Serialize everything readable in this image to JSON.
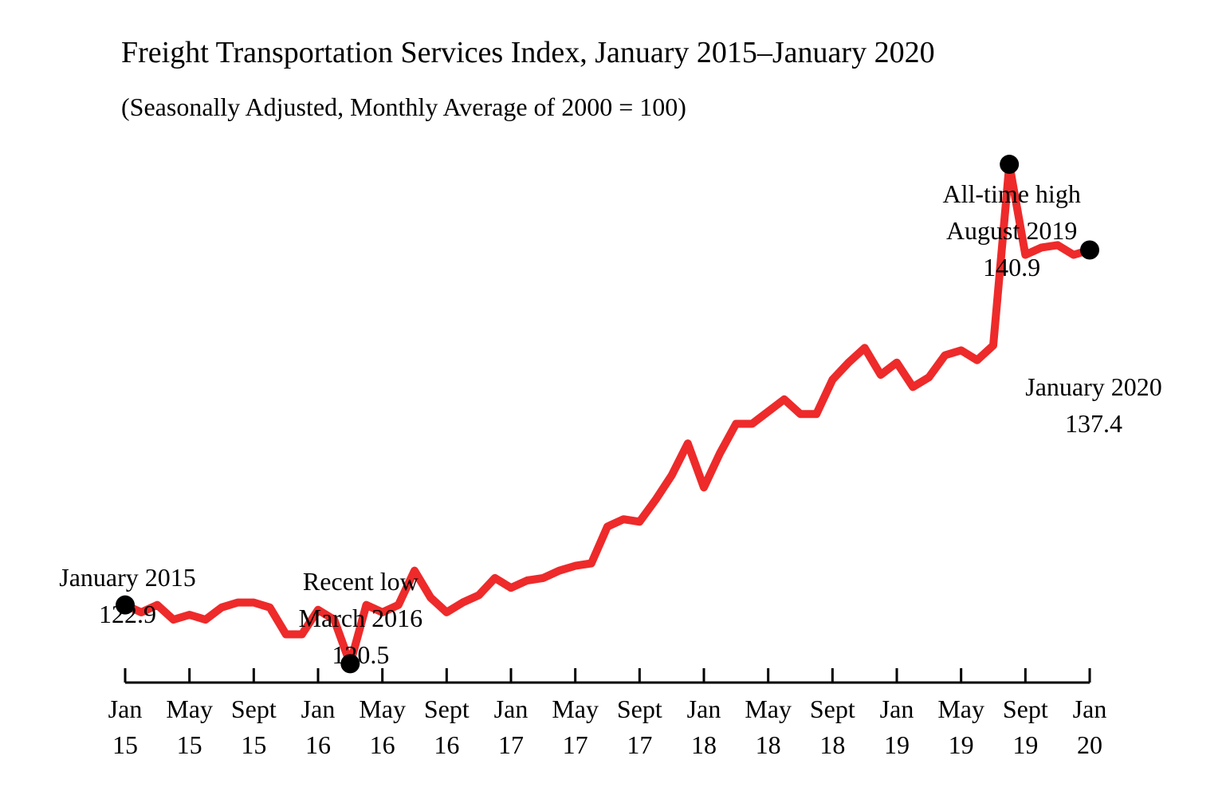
{
  "chart_data": {
    "type": "line",
    "title": "Freight Transportation Services Index, January 2015–January 2020",
    "subtitle": "(Seasonally Adjusted, Monthly Average of 2000 = 100)",
    "xlabel": "",
    "ylabel": "",
    "grid": false,
    "line_color": "#ee2a2a",
    "marker_color": "#000000",
    "x_range": [
      "2015-01",
      "2020-01"
    ],
    "x_ticks": [
      {
        "month": "2015-01",
        "line1": "Jan",
        "line2": "15"
      },
      {
        "month": "2015-05",
        "line1": "May",
        "line2": "15"
      },
      {
        "month": "2015-09",
        "line1": "Sept",
        "line2": "15"
      },
      {
        "month": "2016-01",
        "line1": "Jan",
        "line2": "16"
      },
      {
        "month": "2016-05",
        "line1": "May",
        "line2": "16"
      },
      {
        "month": "2016-09",
        "line1": "Sept",
        "line2": "16"
      },
      {
        "month": "2017-01",
        "line1": "Jan",
        "line2": "17"
      },
      {
        "month": "2017-05",
        "line1": "May",
        "line2": "17"
      },
      {
        "month": "2017-09",
        "line1": "Sept",
        "line2": "17"
      },
      {
        "month": "2018-01",
        "line1": "Jan",
        "line2": "18"
      },
      {
        "month": "2018-05",
        "line1": "May",
        "line2": "18"
      },
      {
        "month": "2018-09",
        "line1": "Sept",
        "line2": "18"
      },
      {
        "month": "2019-01",
        "line1": "Jan",
        "line2": "19"
      },
      {
        "month": "2019-05",
        "line1": "May",
        "line2": "19"
      },
      {
        "month": "2019-09",
        "line1": "Sept",
        "line2": "19"
      },
      {
        "month": "2020-01",
        "line1": "Jan",
        "line2": "20"
      }
    ],
    "series": [
      {
        "x": [
          "2015-01",
          "2015-02",
          "2015-03",
          "2015-04",
          "2015-05",
          "2015-06",
          "2015-07",
          "2015-08",
          "2015-09",
          "2015-10",
          "2015-11",
          "2015-12",
          "2016-01",
          "2016-02",
          "2016-03",
          "2016-04",
          "2016-05",
          "2016-06",
          "2016-07",
          "2016-08",
          "2016-09",
          "2016-10",
          "2016-11",
          "2016-12",
          "2017-01",
          "2017-02",
          "2017-03",
          "2017-04",
          "2017-05",
          "2017-06",
          "2017-07",
          "2017-08",
          "2017-09",
          "2017-10",
          "2017-11",
          "2017-12",
          "2018-01",
          "2018-02",
          "2018-03",
          "2018-04",
          "2018-05",
          "2018-06",
          "2018-07",
          "2018-08",
          "2018-09",
          "2018-10",
          "2018-11",
          "2018-12",
          "2019-01",
          "2019-02",
          "2019-03",
          "2019-04",
          "2019-05",
          "2019-06",
          "2019-07",
          "2019-08",
          "2019-09",
          "2019-10",
          "2019-11",
          "2019-12",
          "2020-01"
        ],
        "values": [
          122.9,
          122.6,
          122.9,
          122.3,
          122.5,
          122.3,
          122.8,
          123.0,
          123.0,
          122.8,
          121.7,
          121.7,
          122.7,
          122.3,
          120.5,
          122.9,
          122.6,
          122.9,
          124.3,
          123.2,
          122.6,
          123.0,
          123.3,
          124.0,
          123.6,
          123.9,
          124.0,
          124.3,
          124.5,
          124.6,
          126.1,
          126.4,
          126.3,
          127.2,
          128.2,
          129.5,
          127.7,
          129.1,
          130.3,
          130.3,
          130.8,
          131.3,
          130.7,
          130.7,
          132.1,
          132.8,
          133.4,
          132.3,
          132.8,
          131.8,
          132.2,
          133.1,
          133.3,
          132.9,
          133.5,
          140.9,
          137.2,
          137.5,
          137.6,
          137.2,
          137.4
        ]
      }
    ],
    "ylim": [
      119.6,
      142.4
    ],
    "highlights": [
      {
        "month": "2015-01",
        "lines": [
          "January 2015",
          "122.9"
        ]
      },
      {
        "month": "2016-03",
        "lines": [
          "Recent low",
          "March 2016",
          "120.5"
        ]
      },
      {
        "month": "2019-08",
        "lines": [
          "All-time high",
          "August 2019",
          "140.9"
        ]
      },
      {
        "month": "2020-01",
        "lines": [
          "January 2020",
          "137.4"
        ]
      }
    ]
  }
}
